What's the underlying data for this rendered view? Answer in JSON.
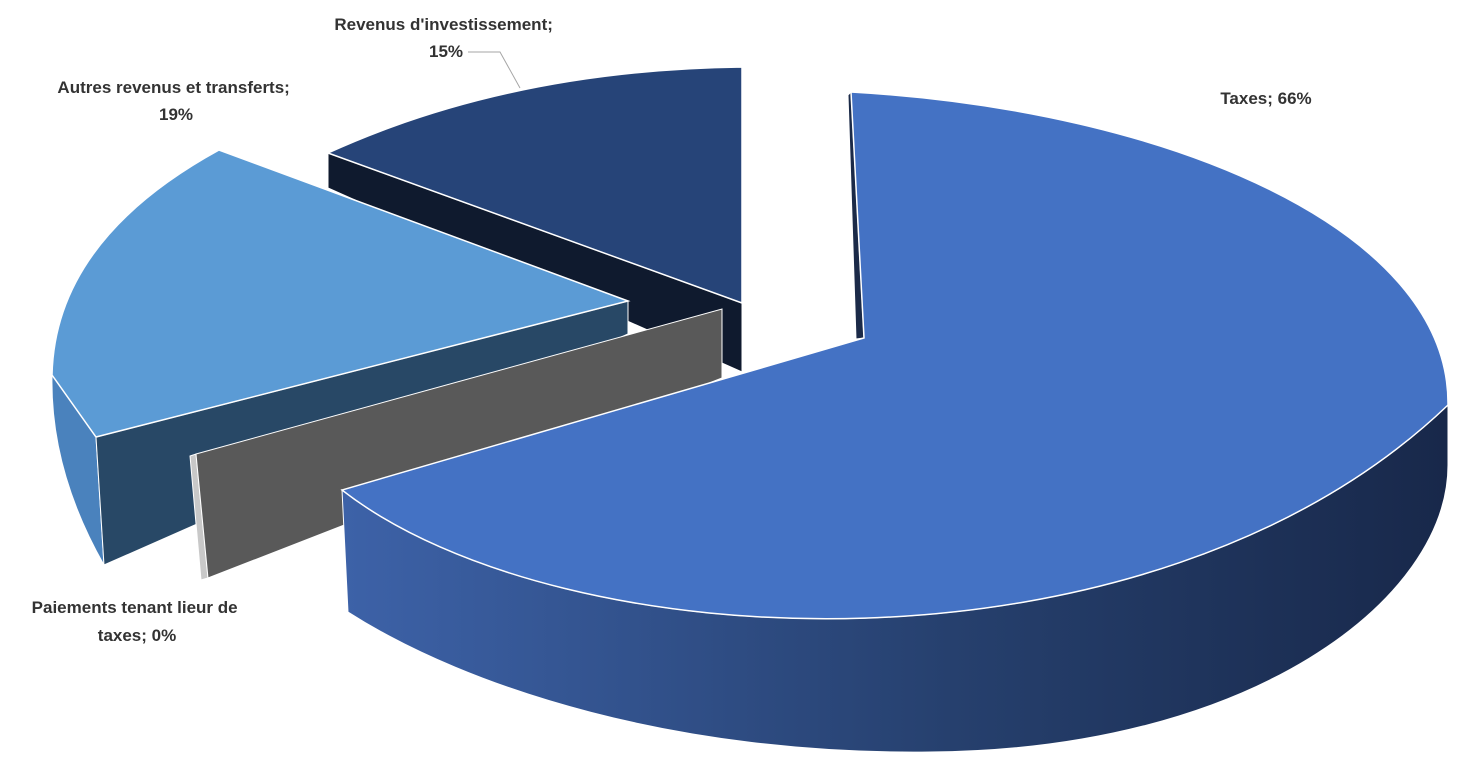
{
  "chart_data": {
    "type": "pie",
    "variant": "3d-exploded",
    "title": "",
    "legend": "none",
    "categories": [
      "Taxes",
      "Paiements tenant lieur de taxes",
      "Autres revenus et transferts",
      "Revenus d'investissement"
    ],
    "values": [
      66,
      0,
      19,
      15
    ],
    "unit": "%",
    "labels": [
      {
        "lines": [
          "Taxes; 66%"
        ]
      },
      {
        "lines": [
          "Paiements tenant lieur de",
          "taxes; 0%"
        ]
      },
      {
        "lines": [
          "Autres revenus et transferts;",
          "19%"
        ]
      },
      {
        "lines": [
          "Revenus d'investissement;",
          "15%"
        ]
      }
    ],
    "colors": [
      "#4472c4",
      "#595959",
      "#5b9bd5",
      "#264478"
    ]
  }
}
